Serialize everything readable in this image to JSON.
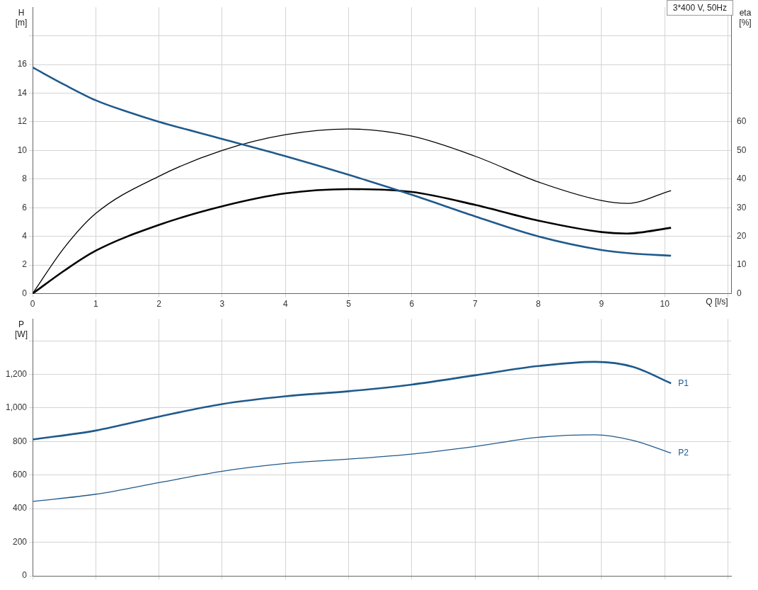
{
  "chart_data": [
    {
      "type": "line",
      "xlabel": "Q [l/s]",
      "ylabel": "H\n[m]",
      "y2label": "eta\n[%]",
      "annotations": [
        "3*400 V, 50Hz"
      ],
      "xlim": [
        0,
        11.05
      ],
      "xticks": [
        0,
        1,
        2,
        3,
        4,
        5,
        6,
        7,
        8,
        9,
        10,
        {
          "value": 11,
          "label": null
        }
      ],
      "ylim": [
        0,
        20
      ],
      "yticks": [
        0,
        2,
        4,
        6,
        8,
        10,
        12,
        14,
        16,
        {
          "value": 18,
          "label": null
        }
      ],
      "y2lim": [
        0,
        100
      ],
      "y2ticks": [
        0,
        10,
        20,
        30,
        40,
        50,
        60
      ],
      "grid": true,
      "legend": false,
      "marker": "none",
      "series": [
        {
          "color": "#1f5a8c",
          "x": [
            0,
            0.5,
            1,
            1.5,
            2,
            3,
            4,
            5,
            6,
            7,
            8,
            9,
            9.5,
            10.1
          ],
          "values": [
            15.8,
            14.6,
            13.5,
            12.7,
            12.0,
            10.8,
            9.6,
            8.3,
            6.9,
            5.4,
            4.0,
            3.05,
            2.8,
            2.65
          ]
        },
        {
          "color": "#000000",
          "axis": "y2",
          "x": [
            0,
            0.5,
            1,
            2,
            3,
            4,
            5,
            6,
            7,
            8,
            9,
            9.4,
            10.1
          ],
          "values": [
            0,
            16,
            28,
            41,
            50,
            55.5,
            57.5,
            55,
            48,
            39,
            32.5,
            31.5,
            36
          ]
        },
        {
          "color": "#000000",
          "axis": "y2",
          "x": [
            0,
            0.5,
            1,
            2,
            3,
            4,
            5,
            6,
            7,
            8,
            9,
            9.4,
            10.1
          ],
          "values": [
            0,
            8,
            15,
            24,
            30.5,
            35,
            36.5,
            35.5,
            31,
            25.5,
            21.5,
            21,
            23
          ]
        }
      ]
    },
    {
      "type": "line",
      "ylabel": "P\n[W]",
      "tick_labels": "y",
      "xlim": [
        0,
        11.05
      ],
      "xticks": [
        0,
        1,
        2,
        3,
        4,
        5,
        6,
        7,
        8,
        9,
        10,
        11
      ],
      "ylim": [
        0,
        1530
      ],
      "yticks": [
        0,
        200,
        400,
        600,
        800,
        {
          "value": 1000,
          "label": "1,000"
        },
        {
          "value": 1200,
          "label": "1,200"
        },
        {
          "value": 1400,
          "label": null
        }
      ],
      "grid": true,
      "legend": false,
      "marker": "none",
      "series": [
        {
          "name": "P1",
          "color": "#1f5a8c",
          "x": [
            0,
            1,
            2,
            3,
            4,
            5,
            6,
            7,
            8,
            8.9,
            9.5,
            10.1
          ],
          "values": [
            812,
            865,
            948,
            1023,
            1069,
            1099,
            1139,
            1194,
            1249,
            1274,
            1244,
            1146
          ]
        },
        {
          "name": "P2",
          "color": "#1f5a8c",
          "x": [
            0,
            1,
            2,
            3,
            4,
            5,
            6,
            7,
            8,
            8.9,
            9.5,
            10.1
          ],
          "values": [
            443,
            486,
            555,
            623,
            669,
            695,
            725,
            770,
            825,
            840,
            806,
            731
          ]
        }
      ]
    }
  ]
}
